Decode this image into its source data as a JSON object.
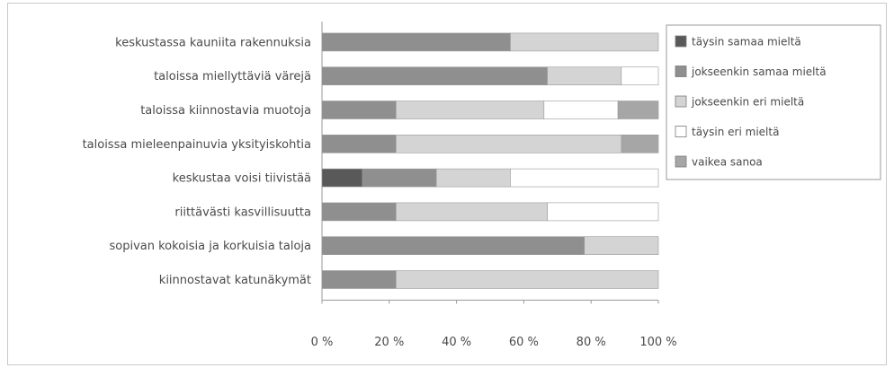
{
  "chart_data": {
    "type": "bar",
    "orientation": "horizontal",
    "stacked": "100%",
    "categories": [
      "keskustassa kauniita rakennuksia",
      "taloissa miellyttäviä värejä",
      "taloissa kiinnostavia muotoja",
      "taloissa mieleenpainuvia yksityiskohtia",
      "keskustaa voisi tiivistää",
      "riittävästi kasvillisuutta",
      "sopivan kokoisia ja korkuisia taloja",
      "kiinnostavat katunäkymät"
    ],
    "series": [
      {
        "name": "täysin samaa mieltä",
        "color": "#595959",
        "values": [
          0,
          0,
          0,
          0,
          12,
          0,
          0,
          0
        ]
      },
      {
        "name": "jokseenkin samaa mieltä",
        "color": "#8f8f8f",
        "values": [
          56,
          67,
          22,
          22,
          22,
          22,
          78,
          22
        ]
      },
      {
        "name": "jokseenkin eri mieltä",
        "color": "#d4d4d4",
        "values": [
          44,
          22,
          44,
          67,
          22,
          45,
          22,
          78
        ]
      },
      {
        "name": "täysin eri mieltä",
        "color": "#ffffff",
        "values": [
          0,
          11,
          22,
          0,
          44,
          33,
          0,
          0
        ]
      },
      {
        "name": "vaikea sanoa",
        "color": "#a6a6a6",
        "values": [
          0,
          0,
          12,
          11,
          0,
          0,
          0,
          0
        ]
      }
    ],
    "xaxis": {
      "range": [
        0,
        100
      ],
      "ticks": [
        0,
        20,
        40,
        60,
        80,
        100
      ],
      "tick_labels": [
        "0 %",
        "20 %",
        "40 %",
        "60 %",
        "80 %",
        "100 %"
      ]
    },
    "grid": false,
    "legend_position": "right"
  }
}
